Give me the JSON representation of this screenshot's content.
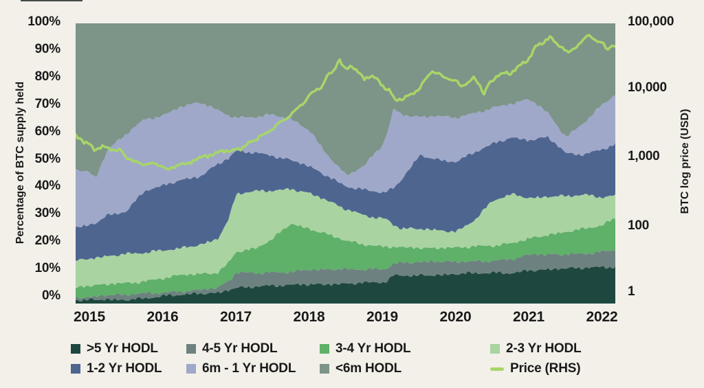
{
  "page": {
    "background": "#f2f0e9",
    "text_color": "#1a1a1a"
  },
  "chart_data": {
    "type": "area",
    "subtype": "stacked-percent-with-log-price-line",
    "title": "",
    "grid": "off",
    "legend_position": "bottom",
    "left_axis": {
      "label": "Percentage of BTC supply held",
      "unit": "%",
      "min": 0,
      "max": 100,
      "ticks": [
        "100%",
        "90%",
        "80%",
        "70%",
        "60%",
        "50%",
        "40%",
        "30%",
        "20%",
        "10%",
        "0%"
      ]
    },
    "right_axis": {
      "label": "BTC log price (USD)",
      "scale": "log",
      "min": 1,
      "max": 100000,
      "ticks": [
        "100,000",
        "10,000",
        "1,000",
        "100",
        "1"
      ]
    },
    "x_axis": {
      "ticks": [
        "2015",
        "2016",
        "2017",
        "2018",
        "2019",
        "2020",
        "2021",
        "2022"
      ],
      "t_min": 2014.81,
      "t_max": 2022.17
    },
    "stack_years": [
      2014.81,
      2015.0,
      2015.08,
      2015.25,
      2015.5,
      2015.75,
      2016.0,
      2016.25,
      2016.5,
      2016.75,
      2016.9,
      2017.0,
      2017.25,
      2017.5,
      2017.75,
      2018.0,
      2018.25,
      2018.5,
      2018.75,
      2019.0,
      2019.07,
      2019.15,
      2019.25,
      2019.5,
      2019.75,
      2020.0,
      2020.25,
      2020.5,
      2020.75,
      2021.0,
      2021.25,
      2021.5,
      2021.75,
      2022.0,
      2022.17
    ],
    "series": [
      {
        "name": ">5 Yr HODL",
        "color": "#1e483f",
        "values": [
          1.0,
          1.2,
          1.3,
          1.5,
          1.5,
          2.0,
          2.5,
          3.0,
          3.5,
          4.0,
          5.0,
          5.8,
          6.0,
          6.2,
          6.5,
          7.0,
          7.0,
          7.2,
          7.3,
          7.5,
          8.0,
          10.0,
          10.0,
          10.2,
          10.3,
          10.5,
          10.7,
          10.8,
          11.0,
          12.0,
          12.2,
          12.4,
          12.6,
          13.0,
          13.2
        ]
      },
      {
        "name": "4-5 Yr HODL",
        "color": "#6d8280",
        "values": [
          1.2,
          1.3,
          1.3,
          1.5,
          1.5,
          1.5,
          1.5,
          1.5,
          1.5,
          1.5,
          3.0,
          5.0,
          5.0,
          5.0,
          5.0,
          5.0,
          5.0,
          5.0,
          5.0,
          5.0,
          5.0,
          4.5,
          4.5,
          4.5,
          4.5,
          4.5,
          4.5,
          4.6,
          4.7,
          5.3,
          5.3,
          5.3,
          5.4,
          5.5,
          5.8
        ]
      },
      {
        "name": "3-4 Yr HODL",
        "color": "#5fb069",
        "values": [
          3.3,
          3.7,
          3.8,
          4.0,
          4.5,
          4.5,
          5.0,
          5.5,
          5.5,
          5.5,
          7.0,
          7.9,
          8.5,
          11.8,
          17.0,
          14.5,
          13.0,
          10.3,
          8.7,
          7.5,
          7.0,
          5.8,
          5.5,
          5.3,
          5.2,
          5.0,
          5.0,
          5.1,
          5.8,
          6.2,
          7.0,
          7.8,
          8.5,
          9.5,
          11.5
        ]
      },
      {
        "name": "2-3 Yr HODL",
        "color": "#a9d3a1",
        "values": [
          10.0,
          10.0,
          10.0,
          10.0,
          10.0,
          10.0,
          10.0,
          10.0,
          10.5,
          12.0,
          15.0,
          20.3,
          20.5,
          17.5,
          12.5,
          12.9,
          11.5,
          11.0,
          10.5,
          10.5,
          10.0,
          7.7,
          7.0,
          6.5,
          6.0,
          5.5,
          9.8,
          16.4,
          17.5,
          13.9,
          13.5,
          13.0,
          12.5,
          10.0,
          8.0
        ]
      },
      {
        "name": "1-2 Yr HODL",
        "color": "#4e6590",
        "values": [
          11.5,
          11.6,
          12.1,
          14.5,
          15.5,
          22.5,
          23.0,
          24.0,
          24.0,
          27.0,
          22.0,
          15.7,
          14.0,
          12.0,
          10.0,
          9.6,
          9.0,
          8.5,
          9.0,
          9.0,
          10.0,
          13.0,
          17.0,
          26.5,
          25.5,
          25.1,
          23.9,
          19.9,
          20.3,
          21.0,
          21.7,
          15.0,
          14.0,
          17.0,
          18.5
        ]
      },
      {
        "name": "6m - 1 Yr HODL",
        "color": "#9fa8c9",
        "values": [
          21.0,
          19.2,
          16.5,
          23.5,
          27.5,
          25.0,
          25.0,
          26.5,
          27.0,
          19.0,
          15.0,
          11.3,
          12.5,
          15.0,
          15.0,
          12.8,
          7.2,
          3.5,
          8.8,
          17.5,
          22.0,
          29.0,
          23.5,
          13.5,
          15.2,
          15.7,
          14.1,
          13.3,
          12.0,
          14.4,
          8.2,
          5.8,
          12.0,
          16.2,
          17.5
        ]
      },
      {
        "name": "<6m HODL",
        "color": "#7d9488",
        "values": [
          52.0,
          53.0,
          55.0,
          45.0,
          39.5,
          34.5,
          33.0,
          29.5,
          28.0,
          31.0,
          33.0,
          34.0,
          33.5,
          32.5,
          34.0,
          38.2,
          47.3,
          54.5,
          50.7,
          43.0,
          38.0,
          30.0,
          32.5,
          33.5,
          33.3,
          33.7,
          32.0,
          29.9,
          28.7,
          27.2,
          32.1,
          40.7,
          35.0,
          28.8,
          25.5
        ]
      }
    ],
    "price_series": {
      "name": "Price (RHS)",
      "color": "#a7d569",
      "axis": "right",
      "unit": "USD",
      "points": [
        [
          2014.81,
          1000
        ],
        [
          2014.92,
          760
        ],
        [
          2015.0,
          710
        ],
        [
          2015.08,
          530
        ],
        [
          2015.17,
          640
        ],
        [
          2015.25,
          600
        ],
        [
          2015.33,
          530
        ],
        [
          2015.42,
          560
        ],
        [
          2015.5,
          400
        ],
        [
          2015.58,
          360
        ],
        [
          2015.67,
          320
        ],
        [
          2015.75,
          300
        ],
        [
          2015.83,
          320
        ],
        [
          2015.92,
          300
        ],
        [
          2016.0,
          280
        ],
        [
          2016.08,
          240
        ],
        [
          2016.17,
          280
        ],
        [
          2016.25,
          320
        ],
        [
          2016.33,
          300
        ],
        [
          2016.42,
          360
        ],
        [
          2016.5,
          400
        ],
        [
          2016.58,
          420
        ],
        [
          2016.67,
          450
        ],
        [
          2016.75,
          500
        ],
        [
          2016.83,
          530
        ],
        [
          2016.92,
          530
        ],
        [
          2017.0,
          560
        ],
        [
          2017.08,
          590
        ],
        [
          2017.17,
          750
        ],
        [
          2017.25,
          790
        ],
        [
          2017.33,
          1000
        ],
        [
          2017.42,
          1100
        ],
        [
          2017.5,
          1300
        ],
        [
          2017.58,
          1700
        ],
        [
          2017.67,
          1900
        ],
        [
          2017.75,
          2400
        ],
        [
          2017.83,
          3000
        ],
        [
          2017.92,
          3800
        ],
        [
          2018.0,
          5300
        ],
        [
          2018.08,
          6300
        ],
        [
          2018.17,
          7500
        ],
        [
          2018.25,
          12000
        ],
        [
          2018.33,
          14000
        ],
        [
          2018.4,
          24000
        ],
        [
          2018.45,
          17000
        ],
        [
          2018.5,
          15000
        ],
        [
          2018.58,
          18000
        ],
        [
          2018.67,
          13000
        ],
        [
          2018.75,
          10000
        ],
        [
          2018.83,
          12000
        ],
        [
          2018.92,
          10000
        ],
        [
          2019.0,
          7500
        ],
        [
          2019.08,
          6700
        ],
        [
          2019.17,
          4200
        ],
        [
          2019.25,
          4500
        ],
        [
          2019.33,
          5000
        ],
        [
          2019.42,
          5600
        ],
        [
          2019.5,
          7100
        ],
        [
          2019.58,
          10000
        ],
        [
          2019.67,
          14000
        ],
        [
          2019.75,
          13000
        ],
        [
          2019.83,
          11000
        ],
        [
          2019.92,
          10000
        ],
        [
          2020.0,
          9400
        ],
        [
          2020.08,
          7500
        ],
        [
          2020.17,
          8900
        ],
        [
          2020.25,
          11000
        ],
        [
          2020.33,
          7500
        ],
        [
          2020.38,
          5300
        ],
        [
          2020.42,
          7500
        ],
        [
          2020.5,
          10000
        ],
        [
          2020.58,
          12000
        ],
        [
          2020.67,
          13000
        ],
        [
          2020.75,
          13000
        ],
        [
          2020.83,
          16000
        ],
        [
          2020.92,
          20000
        ],
        [
          2021.0,
          24000
        ],
        [
          2021.08,
          38000
        ],
        [
          2021.17,
          45000
        ],
        [
          2021.25,
          53000
        ],
        [
          2021.29,
          58000
        ],
        [
          2021.33,
          47000
        ],
        [
          2021.42,
          40000
        ],
        [
          2021.5,
          32000
        ],
        [
          2021.54,
          29000
        ],
        [
          2021.58,
          34000
        ],
        [
          2021.67,
          42000
        ],
        [
          2021.75,
          53000
        ],
        [
          2021.81,
          63000
        ],
        [
          2021.88,
          53000
        ],
        [
          2021.92,
          47000
        ],
        [
          2022.0,
          45000
        ],
        [
          2022.06,
          34000
        ],
        [
          2022.12,
          40000
        ],
        [
          2022.17,
          38000
        ]
      ]
    }
  },
  "legend": {
    "row1": [
      ">5 Yr HODL",
      "4-5 Yr HODL",
      "3-4 Yr HODL",
      "2-3 Yr HODL"
    ],
    "row2": [
      "1-2 Yr HODL",
      "6m - 1 Yr HODL",
      "<6m HODL",
      "Price (RHS)"
    ]
  }
}
